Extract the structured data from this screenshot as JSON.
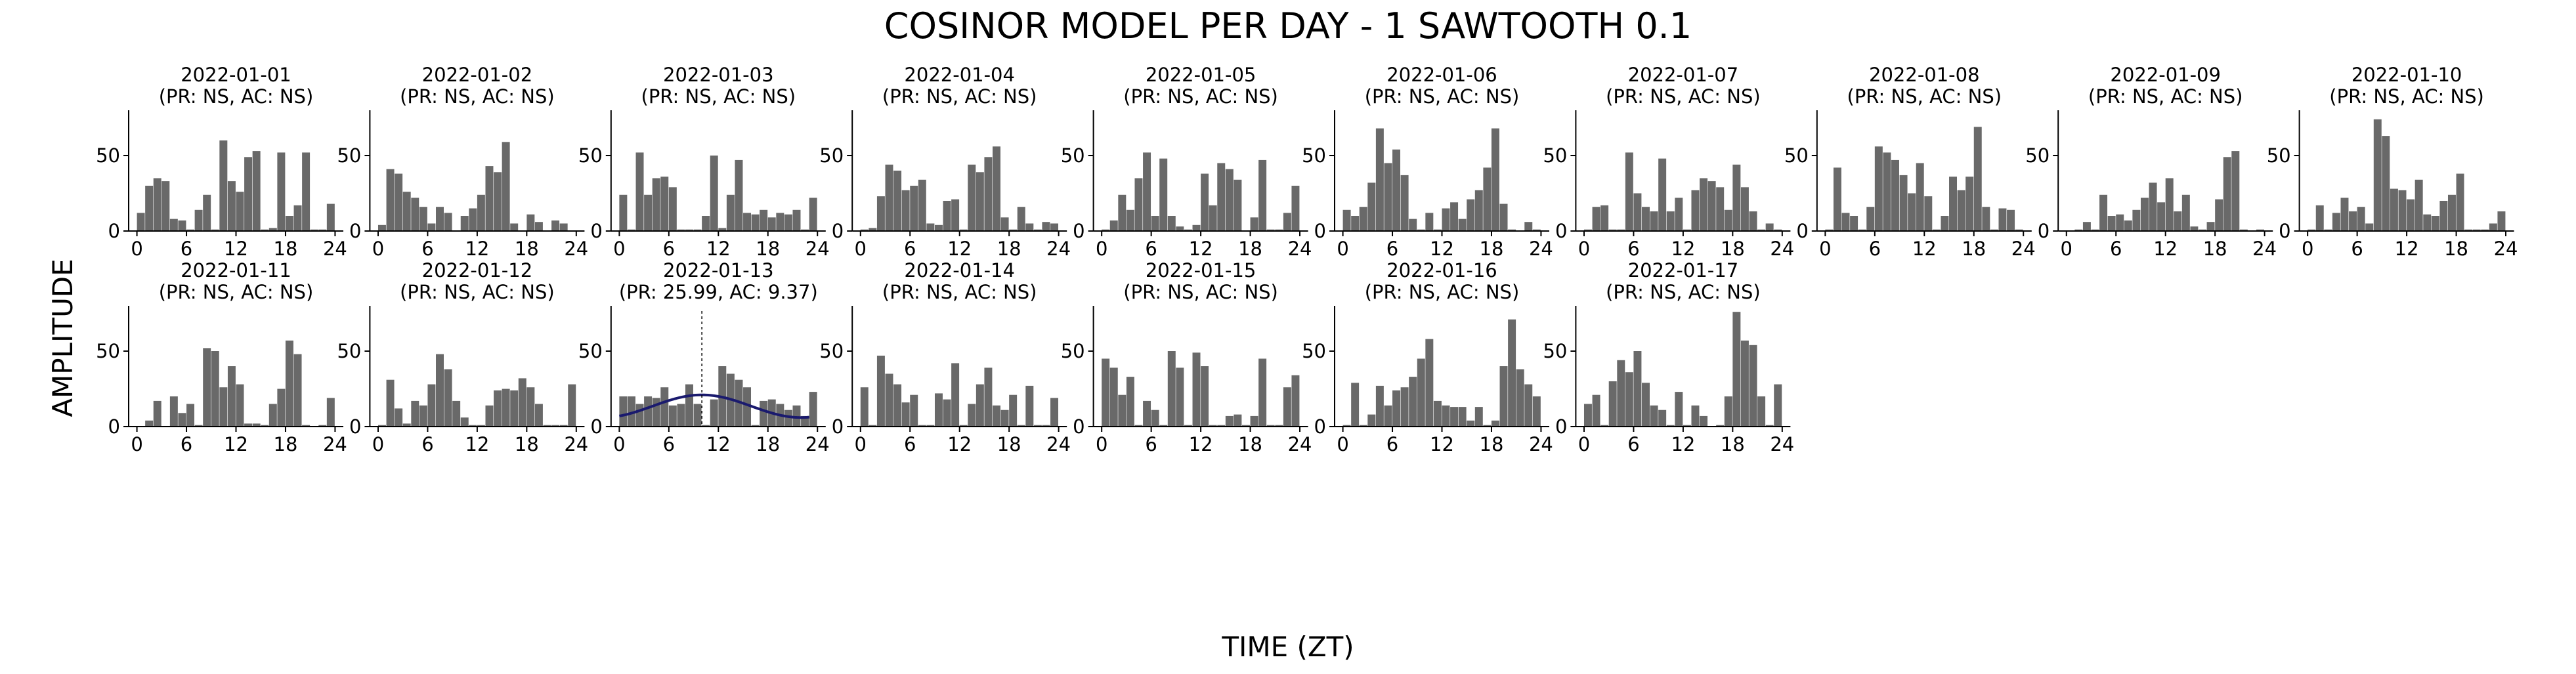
{
  "figure": {
    "title": "COSINOR MODEL PER DAY - 1 SAWTOOTH 0.1",
    "xlabel": "TIME (ZT)",
    "ylabel": "AMPLITUDE"
  },
  "colors": {
    "bar": "#696969",
    "fit": "#1a1a6e",
    "axis": "#000000"
  },
  "chart_data": [
    {
      "type": "bar",
      "title": "2022-01-01",
      "subtitle": "(PR: NS, AC: NS)",
      "x": [
        0,
        1,
        2,
        3,
        4,
        5,
        6,
        7,
        8,
        9,
        10,
        11,
        12,
        13,
        14,
        15,
        16,
        17,
        18,
        19,
        20,
        21,
        22,
        23
      ],
      "values": [
        12,
        30,
        35,
        33,
        8,
        7,
        1,
        14,
        24,
        1,
        60,
        33,
        26,
        49,
        53,
        1,
        2,
        52,
        10,
        17,
        52,
        1,
        1,
        18
      ],
      "xticks": [
        0,
        6,
        12,
        18,
        24
      ],
      "yticks": [
        0,
        50
      ],
      "ylim": [
        0,
        80
      ],
      "xlim": [
        -1,
        25
      ]
    },
    {
      "type": "bar",
      "title": "2022-01-02",
      "subtitle": "(PR: NS, AC: NS)",
      "x": [
        0,
        1,
        2,
        3,
        4,
        5,
        6,
        7,
        8,
        9,
        10,
        11,
        12,
        13,
        14,
        15,
        16,
        17,
        18,
        19,
        20,
        21,
        22,
        23
      ],
      "values": [
        4,
        41,
        38,
        26,
        22,
        16,
        5,
        16,
        12,
        0,
        10,
        15,
        24,
        43,
        39,
        59,
        5,
        0,
        11,
        6,
        0,
        7,
        5,
        0
      ],
      "xticks": [
        0,
        6,
        12,
        18,
        24
      ],
      "yticks": [
        0,
        50
      ],
      "ylim": [
        0,
        80
      ],
      "xlim": [
        -1,
        25
      ]
    },
    {
      "type": "bar",
      "title": "2022-01-03",
      "subtitle": "(PR: NS, AC: NS)",
      "x": [
        0,
        1,
        2,
        3,
        4,
        5,
        6,
        7,
        8,
        9,
        10,
        11,
        12,
        13,
        14,
        15,
        16,
        17,
        18,
        19,
        20,
        21,
        22,
        23
      ],
      "values": [
        24,
        1,
        52,
        24,
        35,
        36,
        29,
        1,
        1,
        1,
        10,
        50,
        2,
        24,
        47,
        12,
        11,
        14,
        9,
        12,
        11,
        14,
        1,
        22
      ],
      "xticks": [
        0,
        6,
        12,
        18,
        24
      ],
      "yticks": [
        0,
        50
      ],
      "ylim": [
        0,
        80
      ],
      "xlim": [
        -1,
        25
      ]
    },
    {
      "type": "bar",
      "title": "2022-01-04",
      "subtitle": "(PR: NS, AC: NS)",
      "x": [
        0,
        1,
        2,
        3,
        4,
        5,
        6,
        7,
        8,
        9,
        10,
        11,
        12,
        13,
        14,
        15,
        16,
        17,
        18,
        19,
        20,
        21,
        22,
        23
      ],
      "values": [
        1,
        2,
        23,
        44,
        40,
        27,
        30,
        34,
        5,
        4,
        20,
        21,
        1,
        44,
        39,
        49,
        56,
        9,
        1,
        16,
        5,
        1,
        6,
        5
      ],
      "xticks": [
        0,
        6,
        12,
        18,
        24
      ],
      "yticks": [
        0,
        50
      ],
      "ylim": [
        0,
        80
      ],
      "xlim": [
        -1,
        25
      ]
    },
    {
      "type": "bar",
      "title": "2022-01-05",
      "subtitle": "(PR: NS, AC: NS)",
      "x": [
        0,
        1,
        2,
        3,
        4,
        5,
        6,
        7,
        8,
        9,
        10,
        11,
        12,
        13,
        14,
        15,
        16,
        17,
        18,
        19,
        20,
        21,
        22,
        23
      ],
      "values": [
        1,
        7,
        24,
        14,
        35,
        52,
        10,
        48,
        10,
        3,
        1,
        4,
        38,
        17,
        45,
        41,
        34,
        0,
        9,
        47,
        1,
        1,
        12,
        30
      ],
      "xticks": [
        0,
        6,
        12,
        18,
        24
      ],
      "yticks": [
        0,
        50
      ],
      "ylim": [
        0,
        80
      ],
      "xlim": [
        -1,
        25
      ]
    },
    {
      "type": "bar",
      "title": "2022-01-06",
      "subtitle": "(PR: NS, AC: NS)",
      "x": [
        0,
        1,
        2,
        3,
        4,
        5,
        6,
        7,
        8,
        9,
        10,
        11,
        12,
        13,
        14,
        15,
        16,
        17,
        18,
        19,
        20,
        21,
        22,
        23
      ],
      "values": [
        14,
        10,
        16,
        32,
        68,
        45,
        54,
        37,
        8,
        1,
        12,
        1,
        15,
        19,
        8,
        21,
        27,
        42,
        68,
        18,
        1,
        0,
        6,
        1
      ],
      "xticks": [
        0,
        6,
        12,
        18,
        24
      ],
      "yticks": [
        0,
        50
      ],
      "ylim": [
        0,
        80
      ],
      "xlim": [
        -1,
        25
      ]
    },
    {
      "type": "bar",
      "title": "2022-01-07",
      "subtitle": "(PR: NS, AC: NS)",
      "x": [
        0,
        1,
        2,
        3,
        4,
        5,
        6,
        7,
        8,
        9,
        10,
        11,
        12,
        13,
        14,
        15,
        16,
        17,
        18,
        19,
        20,
        21,
        22,
        23
      ],
      "values": [
        1,
        16,
        17,
        1,
        1,
        52,
        25,
        16,
        13,
        48,
        13,
        22,
        1,
        27,
        35,
        33,
        29,
        14,
        44,
        29,
        13,
        1,
        5,
        1
      ],
      "xticks": [
        0,
        6,
        12,
        18,
        24
      ],
      "yticks": [
        0,
        50
      ],
      "ylim": [
        0,
        80
      ],
      "xlim": [
        -1,
        25
      ]
    },
    {
      "type": "bar",
      "title": "2022-01-08",
      "subtitle": "(PR: NS, AC: NS)",
      "x": [
        0,
        1,
        2,
        3,
        4,
        5,
        6,
        7,
        8,
        9,
        10,
        11,
        12,
        13,
        14,
        15,
        16,
        17,
        18,
        19,
        20,
        21,
        22,
        23
      ],
      "values": [
        1,
        42,
        12,
        10,
        1,
        16,
        56,
        52,
        47,
        37,
        25,
        45,
        23,
        1,
        10,
        36,
        27,
        36,
        69,
        16,
        1,
        15,
        14,
        1
      ],
      "xticks": [
        0,
        6,
        12,
        18,
        24
      ],
      "yticks": [
        0,
        50
      ],
      "ylim": [
        0,
        80
      ],
      "xlim": [
        -1,
        25
      ]
    },
    {
      "type": "bar",
      "title": "2022-01-09",
      "subtitle": "(PR: NS, AC: NS)",
      "x": [
        0,
        1,
        2,
        3,
        4,
        5,
        6,
        7,
        8,
        9,
        10,
        11,
        12,
        13,
        14,
        15,
        16,
        17,
        18,
        19,
        20,
        21,
        22,
        23
      ],
      "values": [
        0,
        1,
        6,
        1,
        24,
        10,
        11,
        7,
        14,
        22,
        32,
        19,
        35,
        13,
        24,
        3,
        1,
        6,
        21,
        49,
        53,
        1,
        0,
        1
      ],
      "xticks": [
        0,
        6,
        12,
        18,
        24
      ],
      "yticks": [
        0,
        50
      ],
      "ylim": [
        0,
        80
      ],
      "xlim": [
        -1,
        25
      ]
    },
    {
      "type": "bar",
      "title": "2022-01-10",
      "subtitle": "(PR: NS, AC: NS)",
      "x": [
        0,
        1,
        2,
        3,
        4,
        5,
        6,
        7,
        8,
        9,
        10,
        11,
        12,
        13,
        14,
        15,
        16,
        17,
        18,
        19,
        20,
        21,
        22,
        23
      ],
      "values": [
        1,
        17,
        1,
        12,
        22,
        13,
        16,
        5,
        74,
        63,
        28,
        27,
        21,
        34,
        11,
        10,
        20,
        24,
        38,
        1,
        1,
        1,
        5,
        13
      ],
      "xticks": [
        0,
        6,
        12,
        18,
        24
      ],
      "yticks": [
        0,
        50
      ],
      "ylim": [
        0,
        80
      ],
      "xlim": [
        -1,
        25
      ]
    },
    {
      "type": "bar",
      "title": "2022-01-11",
      "subtitle": "(PR: NS, AC: NS)",
      "x": [
        0,
        1,
        2,
        3,
        4,
        5,
        6,
        7,
        8,
        9,
        10,
        11,
        12,
        13,
        14,
        15,
        16,
        17,
        18,
        19,
        20,
        21,
        22,
        23
      ],
      "values": [
        0,
        4,
        17,
        0,
        20,
        9,
        15,
        1,
        52,
        50,
        26,
        40,
        28,
        2,
        2,
        1,
        15,
        25,
        57,
        48,
        1,
        0,
        1,
        19
      ],
      "xticks": [
        0,
        6,
        12,
        18,
        24
      ],
      "yticks": [
        0,
        50
      ],
      "ylim": [
        0,
        80
      ],
      "xlim": [
        -1,
        25
      ]
    },
    {
      "type": "bar",
      "title": "2022-01-12",
      "subtitle": "(PR: NS, AC: NS)",
      "x": [
        0,
        1,
        2,
        3,
        4,
        5,
        6,
        7,
        8,
        9,
        10,
        11,
        12,
        13,
        14,
        15,
        16,
        17,
        18,
        19,
        20,
        21,
        22,
        23
      ],
      "values": [
        1,
        31,
        12,
        2,
        17,
        14,
        28,
        48,
        38,
        17,
        6,
        1,
        1,
        14,
        24,
        25,
        24,
        32,
        26,
        15,
        1,
        1,
        1,
        28
      ],
      "xticks": [
        0,
        6,
        12,
        18,
        24
      ],
      "yticks": [
        0,
        50
      ],
      "ylim": [
        0,
        80
      ],
      "xlim": [
        -1,
        25
      ]
    },
    {
      "type": "bar",
      "title": "2022-01-13",
      "subtitle": "(PR: 25.99, AC: 9.37)",
      "x": [
        0,
        1,
        2,
        3,
        4,
        5,
        6,
        7,
        8,
        9,
        10,
        11,
        12,
        13,
        14,
        15,
        16,
        17,
        18,
        19,
        20,
        21,
        22,
        23
      ],
      "values": [
        20,
        20,
        15,
        20,
        19,
        26,
        14,
        15,
        28,
        15,
        1,
        18,
        40,
        35,
        31,
        26,
        1,
        17,
        18,
        15,
        11,
        14,
        7,
        23
      ],
      "fit": {
        "mesor": 13.5,
        "amplitude": 7.5,
        "acrophase": 10,
        "period": 24
      },
      "acrophase_line": 10,
      "xticks": [
        0,
        6,
        12,
        18,
        24
      ],
      "yticks": [
        0,
        50
      ],
      "ylim": [
        0,
        80
      ],
      "xlim": [
        -1,
        25
      ]
    },
    {
      "type": "bar",
      "title": "2022-01-14",
      "subtitle": "(PR: NS, AC: NS)",
      "x": [
        0,
        1,
        2,
        3,
        4,
        5,
        6,
        7,
        8,
        9,
        10,
        11,
        12,
        13,
        14,
        15,
        16,
        17,
        18,
        19,
        20,
        21,
        22,
        23
      ],
      "values": [
        26,
        1,
        47,
        35,
        28,
        16,
        21,
        1,
        1,
        22,
        18,
        42,
        1,
        15,
        28,
        39,
        14,
        11,
        21,
        1,
        27,
        1,
        1,
        19
      ],
      "xticks": [
        0,
        6,
        12,
        18,
        24
      ],
      "yticks": [
        0,
        50
      ],
      "ylim": [
        0,
        80
      ],
      "xlim": [
        -1,
        25
      ]
    },
    {
      "type": "bar",
      "title": "2022-01-15",
      "subtitle": "(PR: NS, AC: NS)",
      "x": [
        0,
        1,
        2,
        3,
        4,
        5,
        6,
        7,
        8,
        9,
        10,
        11,
        12,
        13,
        14,
        15,
        16,
        17,
        18,
        19,
        20,
        21,
        22,
        23
      ],
      "values": [
        45,
        39,
        21,
        33,
        1,
        17,
        11,
        1,
        50,
        39,
        1,
        49,
        40,
        1,
        1,
        7,
        8,
        1,
        7,
        45,
        1,
        1,
        26,
        34
      ],
      "xticks": [
        0,
        6,
        12,
        18,
        24
      ],
      "yticks": [
        0,
        50
      ],
      "ylim": [
        0,
        80
      ],
      "xlim": [
        -1,
        25
      ]
    },
    {
      "type": "bar",
      "title": "2022-01-16",
      "subtitle": "(PR: NS, AC: NS)",
      "x": [
        0,
        1,
        2,
        3,
        4,
        5,
        6,
        7,
        8,
        9,
        10,
        11,
        12,
        13,
        14,
        15,
        16,
        17,
        18,
        19,
        20,
        21,
        22,
        23
      ],
      "values": [
        1,
        29,
        1,
        8,
        27,
        14,
        24,
        26,
        33,
        45,
        58,
        17,
        14,
        13,
        13,
        4,
        13,
        1,
        4,
        40,
        71,
        38,
        28,
        20
      ],
      "xticks": [
        0,
        6,
        12,
        18,
        24
      ],
      "yticks": [
        0,
        50
      ],
      "ylim": [
        0,
        80
      ],
      "xlim": [
        -1,
        25
      ]
    },
    {
      "type": "bar",
      "title": "2022-01-17",
      "subtitle": "(PR: NS, AC: NS)",
      "x": [
        0,
        1,
        2,
        3,
        4,
        5,
        6,
        7,
        8,
        9,
        10,
        11,
        12,
        13,
        14,
        15,
        16,
        17,
        18,
        19,
        20,
        21,
        22,
        23
      ],
      "values": [
        15,
        21,
        1,
        30,
        44,
        36,
        50,
        29,
        14,
        11,
        1,
        23,
        1,
        14,
        7,
        0,
        1,
        20,
        76,
        57,
        54,
        20,
        1,
        28
      ],
      "xticks": [
        0,
        6,
        12,
        18,
        24
      ],
      "yticks": [
        0,
        50
      ],
      "ylim": [
        0,
        80
      ],
      "xlim": [
        -1,
        25
      ]
    }
  ]
}
